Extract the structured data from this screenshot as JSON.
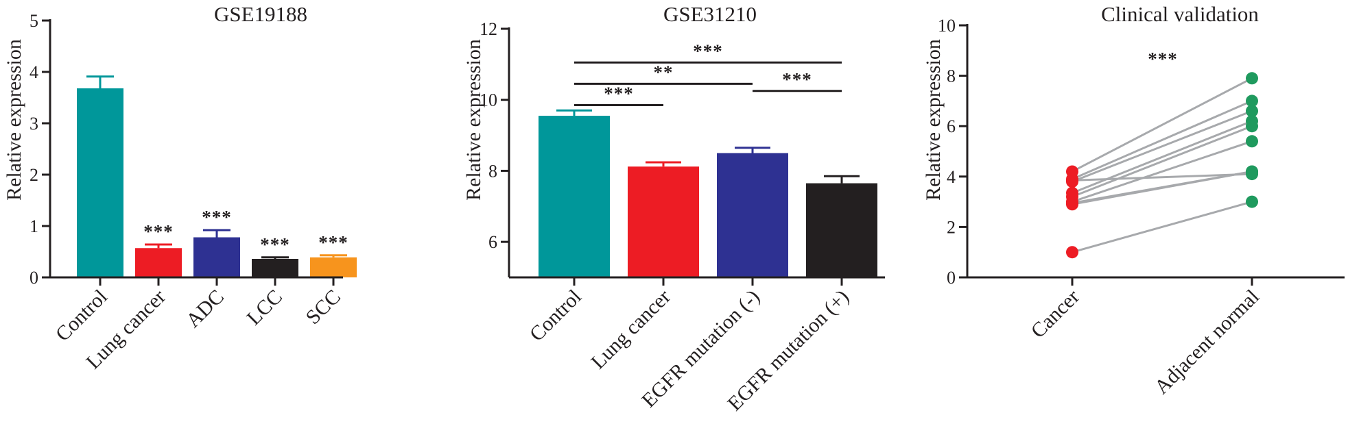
{
  "chart_data": [
    {
      "type": "bar",
      "title": "GSE19188",
      "xlabel": "",
      "ylabel": "Relative expression",
      "ylim": [
        0,
        5
      ],
      "yticks": [
        0,
        1,
        2,
        3,
        4,
        5
      ],
      "grid": false,
      "categories": [
        "Control",
        "Lung cancer",
        "ADC",
        "LCC",
        "SCC"
      ],
      "values": [
        3.68,
        0.57,
        0.78,
        0.36,
        0.39
      ],
      "errors": [
        0.23,
        0.07,
        0.14,
        0.03,
        0.04
      ],
      "colors": [
        "#00979a",
        "#ed1c24",
        "#2e3192",
        "#231f20",
        "#f7941d"
      ],
      "significance": [
        "",
        "***",
        "***",
        "***",
        "***"
      ]
    },
    {
      "type": "bar",
      "title": "GSE31210",
      "xlabel": "",
      "ylabel": "Relative expression",
      "ylim": [
        5,
        12
      ],
      "yticks": [
        6,
        8,
        10,
        12
      ],
      "grid": false,
      "categories": [
        "Control",
        "Lung cancer",
        "EGFR mutation (-)",
        "EGFR mutation (+)"
      ],
      "values": [
        9.55,
        8.12,
        8.5,
        7.65
      ],
      "errors": [
        0.15,
        0.12,
        0.15,
        0.2
      ],
      "colors": [
        "#00979a",
        "#ed1c24",
        "#2e3192",
        "#231f20"
      ],
      "comparisons": [
        {
          "from": 0,
          "to": 3,
          "label": "***",
          "y": 11.05
        },
        {
          "from": 0,
          "to": 2,
          "label": "**",
          "y": 10.45
        },
        {
          "from": 0,
          "to": 1,
          "label": "***",
          "y": 9.85
        },
        {
          "from": 2,
          "to": 3,
          "label": "***",
          "y": 10.25
        }
      ]
    },
    {
      "type": "scatter",
      "title": "Clinical validation",
      "xlabel": "",
      "ylabel": "Relative expression",
      "ylim": [
        0,
        10
      ],
      "yticks": [
        0,
        2,
        4,
        6,
        8,
        10
      ],
      "grid": false,
      "categories": [
        "Cancer",
        "Adjacent normal"
      ],
      "significance": "***",
      "line_color": "#a7a9ac",
      "series": [
        {
          "name": "Cancer",
          "color": "#ed1c24",
          "values": [
            4.2,
            3.9,
            3.8,
            3.35,
            3.2,
            3.0,
            2.9,
            3.85,
            2.95,
            1.0
          ]
        },
        {
          "name": "Adjacent normal",
          "color": "#1f9a5e",
          "values": [
            7.9,
            7.0,
            6.6,
            6.2,
            6.0,
            5.4,
            4.2,
            4.1,
            4.2,
            3.0
          ]
        }
      ]
    }
  ]
}
